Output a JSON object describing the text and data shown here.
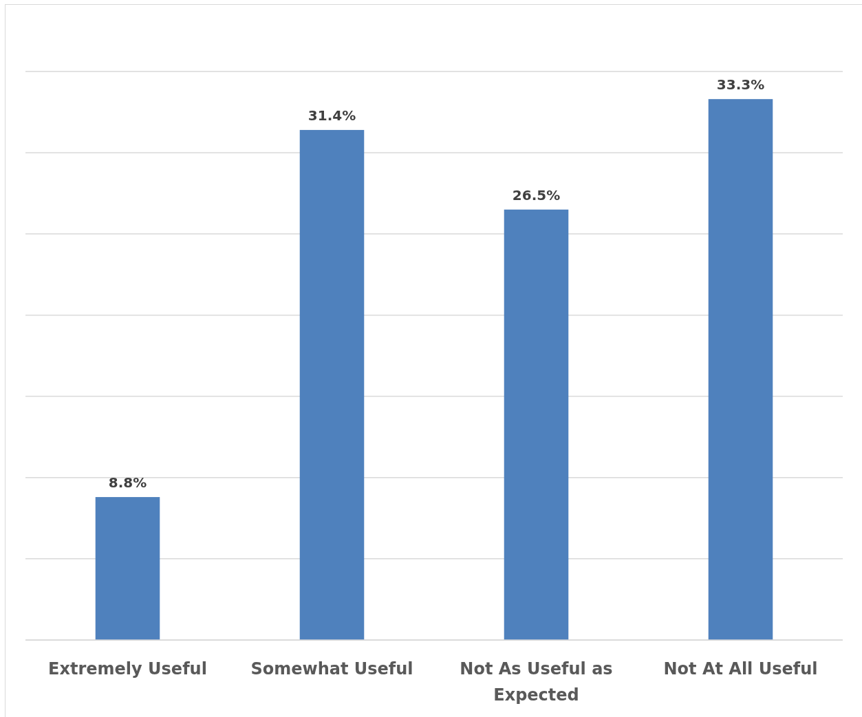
{
  "chart_data": {
    "type": "bar",
    "categories": [
      "Extremely Useful",
      "Somewhat Useful",
      "Not As Useful as Expected",
      "Not At All Useful"
    ],
    "values": [
      8.8,
      31.4,
      26.5,
      33.3
    ],
    "value_labels": [
      "8.8%",
      "31.4%",
      "26.5%",
      "33.3%"
    ],
    "color": "#4f81bd",
    "ylim": [
      0,
      35
    ],
    "yticks": [
      {
        "value": 0,
        "label": null
      },
      {
        "value": 5,
        "label": null
      },
      {
        "value": 10,
        "label": null
      },
      {
        "value": 15,
        "label": null
      },
      {
        "value": 20,
        "label": null
      },
      {
        "value": 25,
        "label": null
      },
      {
        "value": 30,
        "label": null
      },
      {
        "value": 35,
        "label": null
      }
    ],
    "grid": "y",
    "tick_labels": "x"
  }
}
